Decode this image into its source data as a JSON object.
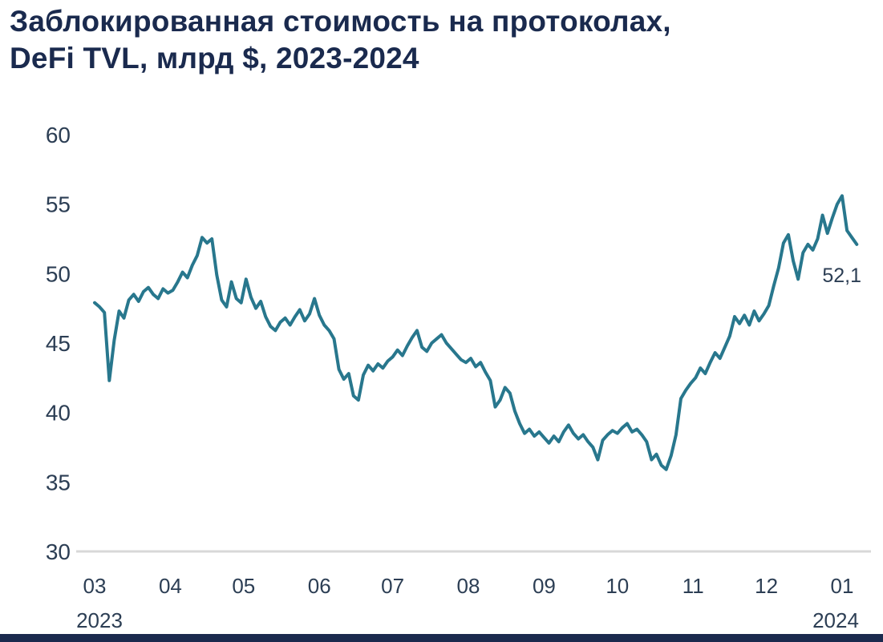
{
  "title": {
    "line1": "Заблокированная стоимость на протоколах,",
    "line2": "DeFi TVL, млрд $, 2023-2024"
  },
  "colors": {
    "title": "#1a2a4e",
    "axis_text": "#2c3e54",
    "line": "#28778d",
    "baseline": "#d8d8d8",
    "footer_bar": "#1b2a4e"
  },
  "chart_data": {
    "type": "line",
    "title": "Заблокированная стоимость на протоколах, DeFi TVL, млрд $, 2023-2024",
    "ylabel": "млрд $",
    "ylim": [
      30,
      60
    ],
    "yticks": [
      60,
      55,
      50,
      45,
      40,
      35,
      30
    ],
    "grid": false,
    "legend": false,
    "x_step_days": 2,
    "xticks": [
      {
        "day": 0,
        "label": "03",
        "sub": "2023"
      },
      {
        "day": 31,
        "label": "04"
      },
      {
        "day": 61,
        "label": "05"
      },
      {
        "day": 92,
        "label": "06"
      },
      {
        "day": 122,
        "label": "07"
      },
      {
        "day": 153,
        "label": "08"
      },
      {
        "day": 184,
        "label": "09"
      },
      {
        "day": 214,
        "label": "10"
      },
      {
        "day": 245,
        "label": "11"
      },
      {
        "day": 275,
        "label": "12"
      },
      {
        "day": 306,
        "label": "01",
        "sub": "2024"
      }
    ],
    "values": [
      47.9,
      47.6,
      47.2,
      42.3,
      45.2,
      47.3,
      46.8,
      48.1,
      48.5,
      48.0,
      48.7,
      49.0,
      48.5,
      48.2,
      48.9,
      48.6,
      48.8,
      49.4,
      50.1,
      49.7,
      50.6,
      51.3,
      52.6,
      52.2,
      52.5,
      49.9,
      48.1,
      47.6,
      49.4,
      48.2,
      47.9,
      49.6,
      48.3,
      47.5,
      48.0,
      46.9,
      46.2,
      45.9,
      46.5,
      46.8,
      46.3,
      46.9,
      47.4,
      46.6,
      47.1,
      48.2,
      47.0,
      46.3,
      45.9,
      45.3,
      43.1,
      42.4,
      42.8,
      41.2,
      40.9,
      42.7,
      43.4,
      43.0,
      43.5,
      43.2,
      43.7,
      44.0,
      44.5,
      44.1,
      44.8,
      45.4,
      45.9,
      44.7,
      44.4,
      45.0,
      45.3,
      45.6,
      45.0,
      44.6,
      44.2,
      43.8,
      43.6,
      43.9,
      43.3,
      43.6,
      42.9,
      42.3,
      40.4,
      40.9,
      41.8,
      41.4,
      40.1,
      39.2,
      38.5,
      38.8,
      38.3,
      38.6,
      38.2,
      37.8,
      38.3,
      37.9,
      38.6,
      39.1,
      38.5,
      38.1,
      38.4,
      37.9,
      37.5,
      36.6,
      38.0,
      38.4,
      38.7,
      38.5,
      38.9,
      39.2,
      38.6,
      38.8,
      38.4,
      37.9,
      36.6,
      37.0,
      36.2,
      35.9,
      36.9,
      38.4,
      41.0,
      41.6,
      42.1,
      42.5,
      43.2,
      42.8,
      43.6,
      44.3,
      43.9,
      44.7,
      45.5,
      46.9,
      46.4,
      47.0,
      46.3,
      47.3,
      46.6,
      47.1,
      47.7,
      49.1,
      50.4,
      52.2,
      52.8,
      50.9,
      49.6,
      51.5,
      52.1,
      51.7,
      52.5,
      54.2,
      52.9,
      54.0,
      55.0,
      55.6,
      53.1,
      52.6,
      52.1
    ],
    "end_label": "52,1",
    "end_value": 52.1
  }
}
